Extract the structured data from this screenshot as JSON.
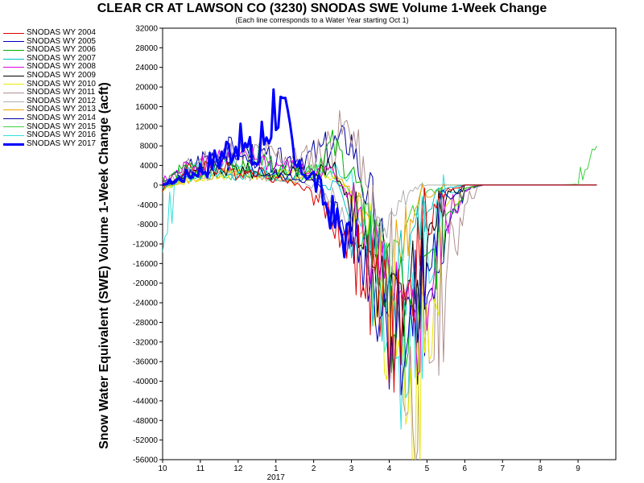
{
  "chart_data": {
    "type": "line",
    "title": "CLEAR CR AT LAWSON CO (3230) SNODAS SWE Volume 1-Week Change",
    "subtitle": "(Each line corresponds to a Water Year starting Oct 1)",
    "ylabel": "Snow Water Equivalent (SWE) Volume 1-Week Change (acft)",
    "xlabel": "",
    "ylim": [
      -56000,
      32000
    ],
    "yticks": [
      32000,
      28000,
      24000,
      20000,
      16000,
      12000,
      8000,
      4000,
      0,
      -4000,
      -8000,
      -12000,
      -16000,
      -20000,
      -24000,
      -28000,
      -32000,
      -36000,
      -40000,
      -44000,
      -48000,
      -52000,
      -56000
    ],
    "xticks": [
      "10",
      "11",
      "12",
      "1",
      "2",
      "3",
      "4",
      "5",
      "6",
      "7",
      "8",
      "9"
    ],
    "xtick_year": "2017",
    "grid": false,
    "legend_position": "left",
    "series": [
      {
        "name": "SNODAS WY 2004",
        "color": "#e00000",
        "width": 1,
        "seed": 4,
        "values": [
          -500,
          2000,
          4000,
          3500,
          2500,
          3000,
          1500,
          500,
          -1500,
          -7000,
          -12000,
          -20000,
          -30000,
          -26000,
          -8000,
          -1000,
          0,
          0,
          0,
          0,
          0,
          0,
          0,
          0
        ]
      },
      {
        "name": "SNODAS WY 2005",
        "color": "#0000c0",
        "width": 1,
        "seed": 5,
        "values": [
          0,
          1500,
          3000,
          4000,
          5000,
          3000,
          2000,
          1500,
          500,
          -5000,
          -10000,
          -18000,
          -28000,
          -32000,
          -18000,
          -3000,
          0,
          0,
          0,
          0,
          0,
          0,
          0,
          0
        ]
      },
      {
        "name": "SNODAS WY 2006",
        "color": "#00b000",
        "width": 1,
        "seed": 6,
        "values": [
          1000,
          3500,
          2500,
          5000,
          4500,
          6000,
          3500,
          2000,
          4000,
          8000,
          3000,
          -10000,
          -24000,
          -30000,
          -20000,
          -6000,
          -500,
          0,
          0,
          0,
          0,
          0,
          0,
          0
        ]
      },
      {
        "name": "SNODAS WY 2007",
        "color": "#00c0c0",
        "width": 1,
        "seed": 7,
        "values": [
          -500,
          1000,
          2000,
          2500,
          1500,
          3000,
          1000,
          2000,
          1500,
          -1000,
          -8000,
          -16000,
          -26000,
          -14000,
          -4000,
          -500,
          0,
          0,
          0,
          0,
          0,
          0,
          0,
          0
        ]
      },
      {
        "name": "SNODAS WY 2008",
        "color": "#e000e0",
        "width": 1,
        "seed": 8,
        "values": [
          500,
          3000,
          4500,
          6000,
          5000,
          5500,
          4000,
          3500,
          2500,
          3000,
          -3000,
          -14000,
          -26000,
          -34000,
          -24000,
          -8000,
          -1000,
          0,
          0,
          0,
          0,
          0,
          0,
          0
        ]
      },
      {
        "name": "SNODAS WY 2009",
        "color": "#000000",
        "width": 1,
        "seed": 9,
        "values": [
          -200,
          1500,
          2500,
          3000,
          3500,
          2500,
          2000,
          3000,
          2500,
          4000,
          -4000,
          -14000,
          -24000,
          -26000,
          -12000,
          -2500,
          0,
          0,
          0,
          0,
          0,
          0,
          0,
          0
        ]
      },
      {
        "name": "SNODAS WY 2010",
        "color": "#e8e800",
        "width": 1,
        "seed": 10,
        "values": [
          -1000,
          500,
          1500,
          2000,
          2500,
          1500,
          2000,
          2500,
          1500,
          2000,
          -2000,
          -12000,
          -30000,
          -50000,
          -28000,
          -6000,
          -500,
          0,
          0,
          0,
          0,
          0,
          0,
          0
        ]
      },
      {
        "name": "SNODAS WY 2011",
        "color": "#b09090",
        "width": 1,
        "seed": 11,
        "values": [
          500,
          2500,
          5000,
          6000,
          7000,
          6500,
          6000,
          5500,
          6000,
          9000,
          12000,
          -4000,
          -18000,
          -42000,
          -36000,
          -18000,
          -3000,
          0,
          0,
          0,
          0,
          0,
          0,
          0
        ]
      },
      {
        "name": "SNODAS WY 2012",
        "color": "#b0b0b0",
        "width": 1,
        "seed": 12,
        "values": [
          0,
          1000,
          1500,
          2000,
          2500,
          1500,
          1000,
          1000,
          -500,
          -3000,
          -8000,
          -12000,
          -6000,
          -1500,
          0,
          0,
          0,
          0,
          0,
          0,
          0,
          0,
          0,
          0
        ]
      },
      {
        "name": "SNODAS WY 2013",
        "color": "#f0a000",
        "width": 1,
        "seed": 13,
        "values": [
          -500,
          500,
          1500,
          2500,
          2000,
          2000,
          1500,
          1000,
          2500,
          3000,
          -2000,
          -10000,
          -18000,
          -10000,
          -2000,
          0,
          0,
          0,
          0,
          0,
          0,
          0,
          0,
          0
        ]
      },
      {
        "name": "SNODAS WY 2014",
        "color": "#0000a0",
        "width": 1,
        "seed": 14,
        "values": [
          0,
          2500,
          5000,
          6500,
          7000,
          6000,
          5000,
          5500,
          6000,
          8000,
          9000,
          -6000,
          -22000,
          -32000,
          -22000,
          -7000,
          -800,
          0,
          0,
          0,
          0,
          0,
          0,
          0
        ]
      },
      {
        "name": "SNODAS WY 2015",
        "color": "#40d040",
        "width": 1,
        "seed": 15,
        "values": [
          -1000,
          1500,
          2500,
          3000,
          2000,
          2500,
          1500,
          3500,
          2500,
          2000,
          -1500,
          -8000,
          -16000,
          -8000,
          -1500,
          0,
          0,
          0,
          0,
          0,
          0,
          0,
          200,
          8000
        ]
      },
      {
        "name": "SNODAS WY 2016",
        "color": "#30e0e0",
        "width": 1,
        "seed": 16,
        "values": [
          -10000,
          2000,
          3500,
          4000,
          3500,
          3000,
          2500,
          3000,
          4000,
          3500,
          1000,
          -12000,
          -28000,
          -40000,
          -16000,
          -2000,
          0,
          0,
          0,
          0,
          0,
          0,
          0,
          0
        ]
      },
      {
        "name": "SNODAS WY 2017",
        "color": "#0000ff",
        "width": 3,
        "seed": 17,
        "values": [
          0,
          1500,
          3000,
          6000,
          9000,
          5000,
          18000,
          4000,
          1500,
          -7000,
          -12000
        ]
      }
    ]
  }
}
